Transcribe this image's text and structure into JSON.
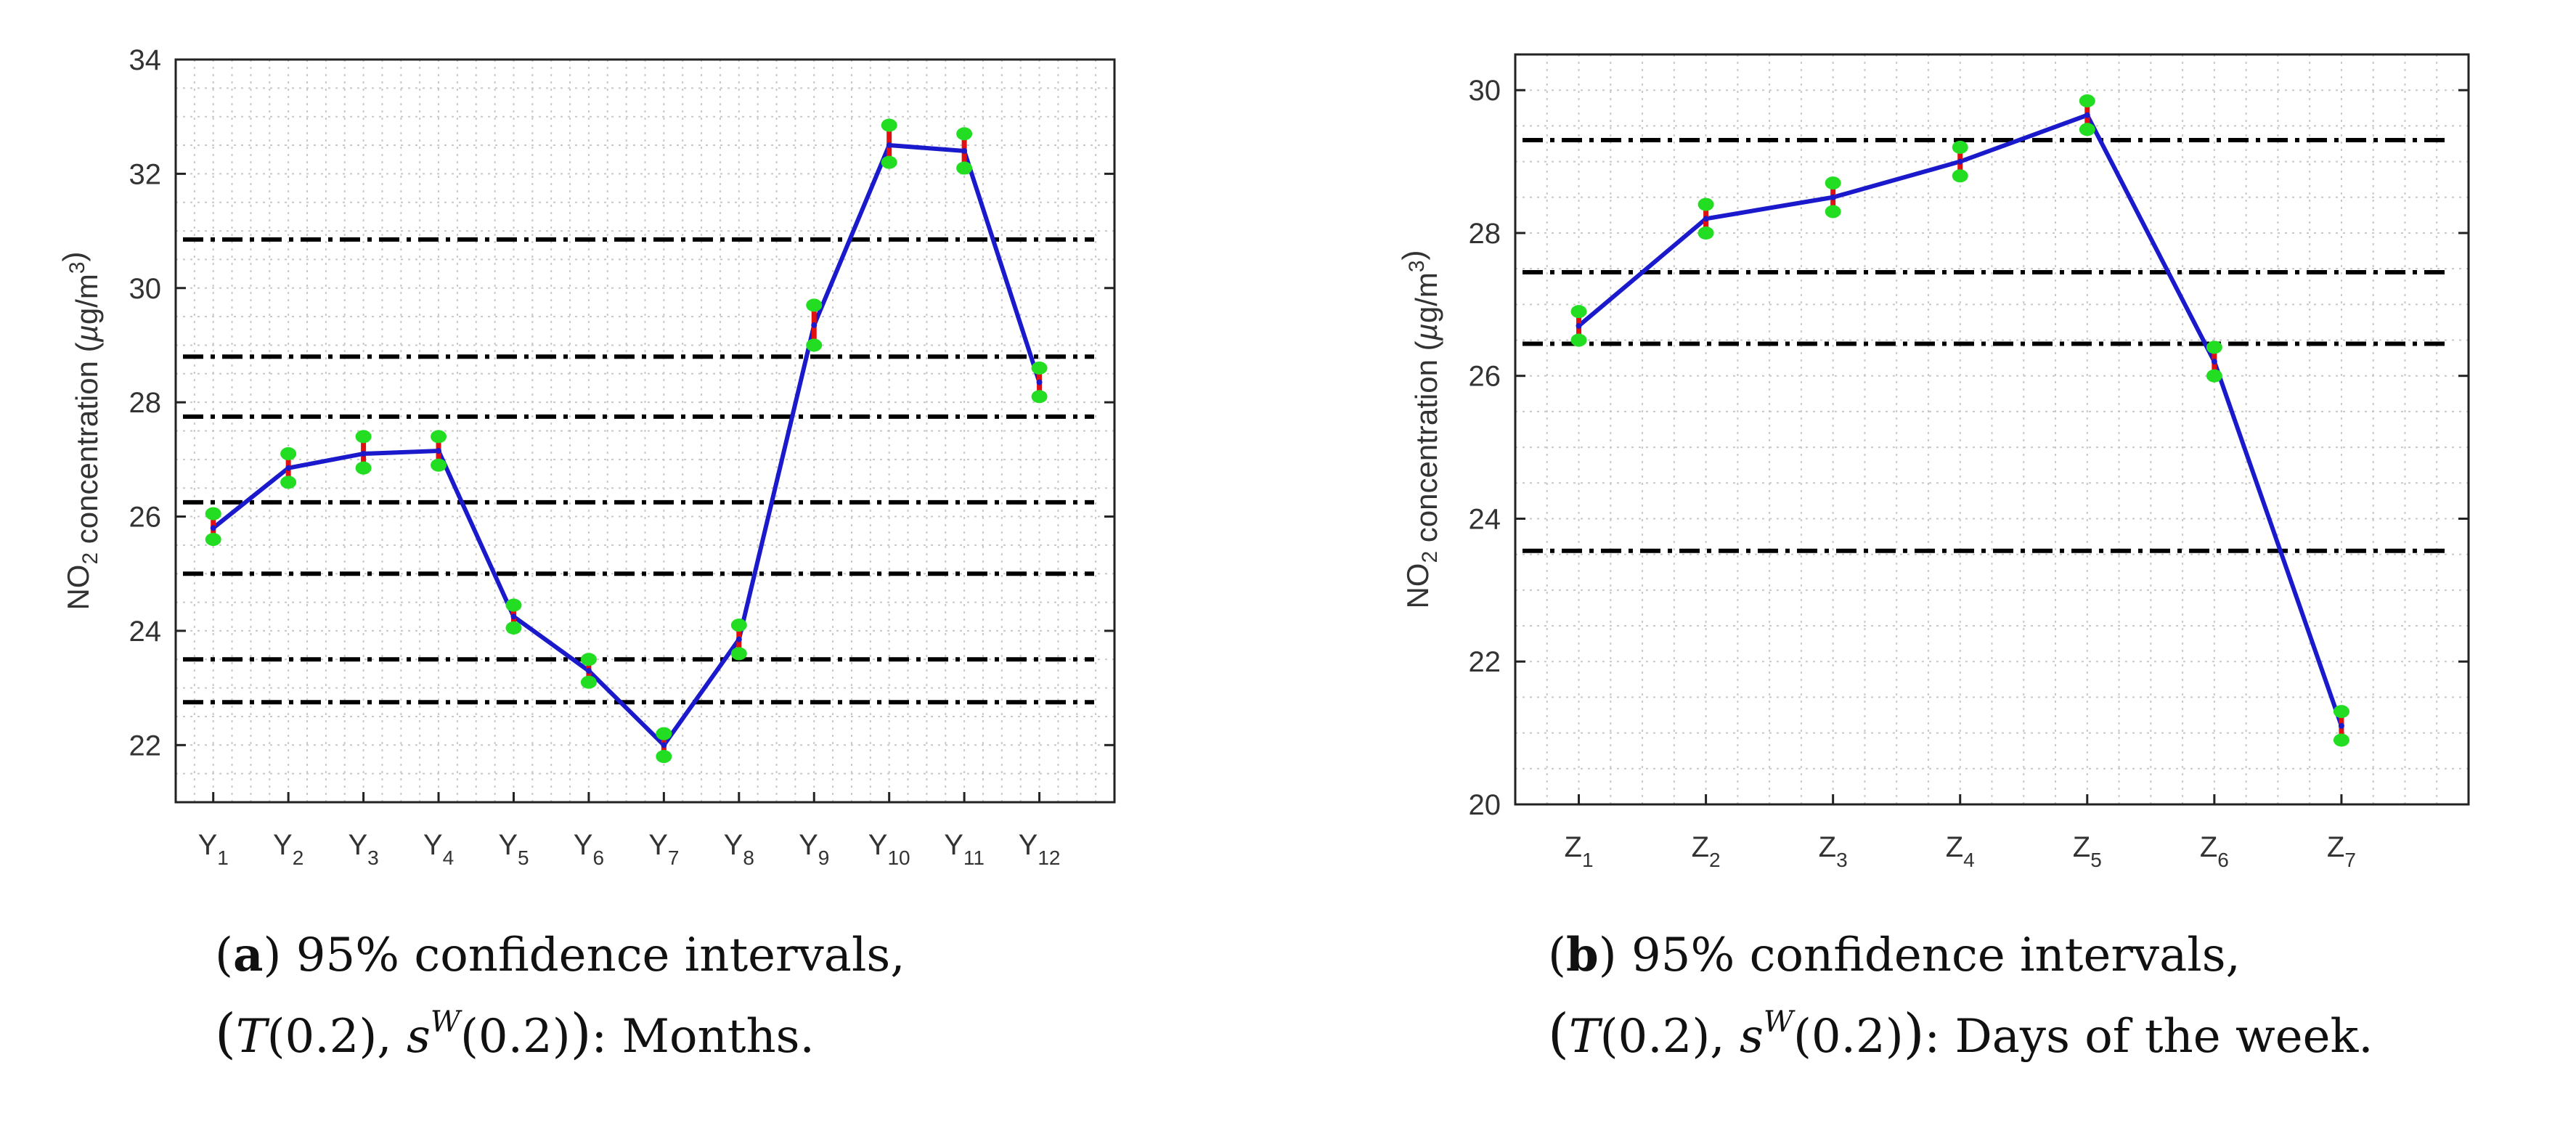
{
  "chart_data": [
    {
      "type": "line",
      "panel": "a",
      "ylabel": "NO2 concentration (µg/m3)",
      "ylim": [
        21,
        34
      ],
      "yticks": [
        22,
        24,
        26,
        28,
        30,
        32,
        34
      ],
      "categories": [
        {
          "base": "Y",
          "sub": "1"
        },
        {
          "base": "Y",
          "sub": "2"
        },
        {
          "base": "Y",
          "sub": "3"
        },
        {
          "base": "Y",
          "sub": "4"
        },
        {
          "base": "Y",
          "sub": "5"
        },
        {
          "base": "Y",
          "sub": "6"
        },
        {
          "base": "Y",
          "sub": "7"
        },
        {
          "base": "Y",
          "sub": "8"
        },
        {
          "base": "Y",
          "sub": "9"
        },
        {
          "base": "Y",
          "sub": "10"
        },
        {
          "base": "Y",
          "sub": "11"
        },
        {
          "base": "Y",
          "sub": "12"
        }
      ],
      "values": [
        25.8,
        26.85,
        27.1,
        27.15,
        24.25,
        23.3,
        22.0,
        23.85,
        29.35,
        32.5,
        32.4,
        28.35
      ],
      "ci_low": [
        25.6,
        26.6,
        26.85,
        26.9,
        24.05,
        23.1,
        21.8,
        23.6,
        29.0,
        32.2,
        32.1,
        28.1
      ],
      "ci_high": [
        26.05,
        27.1,
        27.4,
        27.4,
        24.45,
        23.5,
        22.2,
        24.1,
        29.7,
        32.85,
        32.7,
        28.6
      ],
      "reference_lines": [
        30.85,
        28.8,
        27.75,
        26.25,
        25.0,
        23.5,
        22.75
      ],
      "caption": {
        "bold": "a",
        "line1": ") 95% confidence intervals,",
        "T": "T",
        "s": "s",
        "sup": "W",
        "arg": "0.2",
        "tail": ": Months."
      }
    },
    {
      "type": "line",
      "panel": "b",
      "ylabel": "NO2 concentration (µg/m3)",
      "ylim": [
        20,
        30.5
      ],
      "yticks": [
        20,
        22,
        24,
        26,
        28,
        30
      ],
      "categories": [
        {
          "base": "Z",
          "sub": "1"
        },
        {
          "base": "Z",
          "sub": "2"
        },
        {
          "base": "Z",
          "sub": "3"
        },
        {
          "base": "Z",
          "sub": "4"
        },
        {
          "base": "Z",
          "sub": "5"
        },
        {
          "base": "Z",
          "sub": "6"
        },
        {
          "base": "Z",
          "sub": "7"
        }
      ],
      "values": [
        26.7,
        28.2,
        28.5,
        29.0,
        29.65,
        26.2,
        21.1
      ],
      "ci_low": [
        26.5,
        28.0,
        28.3,
        28.8,
        29.45,
        26.0,
        20.9
      ],
      "ci_high": [
        26.9,
        28.4,
        28.7,
        29.2,
        29.85,
        26.4,
        21.3
      ],
      "reference_lines": [
        29.3,
        27.45,
        26.45,
        23.55
      ],
      "caption": {
        "bold": "b",
        "line1": ") 95% confidence intervals,",
        "T": "T",
        "s": "s",
        "sup": "W",
        "arg": "0.2",
        "tail": ": Days of the week."
      }
    }
  ]
}
